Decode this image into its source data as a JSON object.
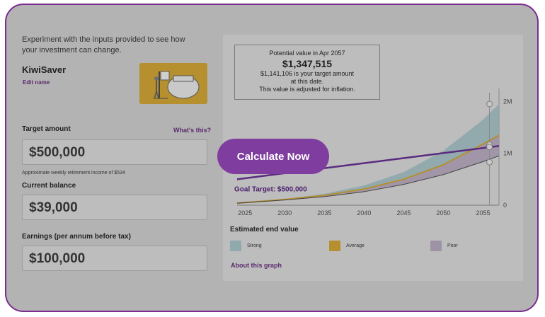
{
  "intro": "Experiment with the inputs provided to see how your investment can change.",
  "product": {
    "name": "KiwiSaver",
    "edit_label": "Edit name"
  },
  "fields": {
    "target": {
      "label": "Target amount",
      "help_link": "What's this?",
      "value": "$500,000",
      "hint": "Approximate weekly retirement income of $534"
    },
    "balance": {
      "label": "Current balance",
      "value": "$39,000"
    },
    "earnings": {
      "label": "Earnings (per annum before tax)",
      "value": "$100,000"
    }
  },
  "tooltip": {
    "heading": "Potential value in Apr 2057",
    "value": "$1,347,515",
    "line1": "$1,141,106 is your target amount",
    "line2": "at this date.",
    "line3": "This value is adjusted for inflation."
  },
  "cta_label": "Calculate Now",
  "chart_data": {
    "type": "area",
    "x_ticks": [
      "2025",
      "2030",
      "2035",
      "2040",
      "2045",
      "2050",
      "2055"
    ],
    "y_ticks": [
      "0",
      "1M",
      "2M"
    ],
    "xlim": [
      2024,
      2057
    ],
    "ylim": [
      0,
      2250000
    ],
    "goal_label": "Goal Target: $500,000",
    "goal_line": {
      "x": [
        2024,
        2057
      ],
      "y": [
        500000,
        1141106
      ]
    },
    "series": [
      {
        "name": "Strong",
        "color": "#8fa9ad",
        "x": [
          2024,
          2030,
          2035,
          2040,
          2045,
          2050,
          2055,
          2057
        ],
        "y": [
          39000,
          120000,
          220000,
          380000,
          640000,
          1050000,
          1650000,
          1950000
        ]
      },
      {
        "name": "Average",
        "color": "#b68f2f",
        "x": [
          2024,
          2030,
          2035,
          2040,
          2045,
          2050,
          2055,
          2057
        ],
        "y": [
          39000,
          110000,
          190000,
          310000,
          500000,
          780000,
          1180000,
          1347515
        ]
      },
      {
        "name": "Poor",
        "color": "#9e93a6",
        "x": [
          2024,
          2030,
          2035,
          2040,
          2045,
          2050,
          2055,
          2057
        ],
        "y": [
          39000,
          100000,
          165000,
          260000,
          400000,
          590000,
          840000,
          950000
        ]
      }
    ]
  },
  "estimate": {
    "title": "Estimated end value"
  },
  "legend": [
    {
      "label": "Strong",
      "color": "#8fa9ad"
    },
    {
      "label": "Average",
      "color": "#b68f2f"
    },
    {
      "label": "Poor",
      "color": "#9e93a6"
    }
  ],
  "about_link": "About this graph"
}
